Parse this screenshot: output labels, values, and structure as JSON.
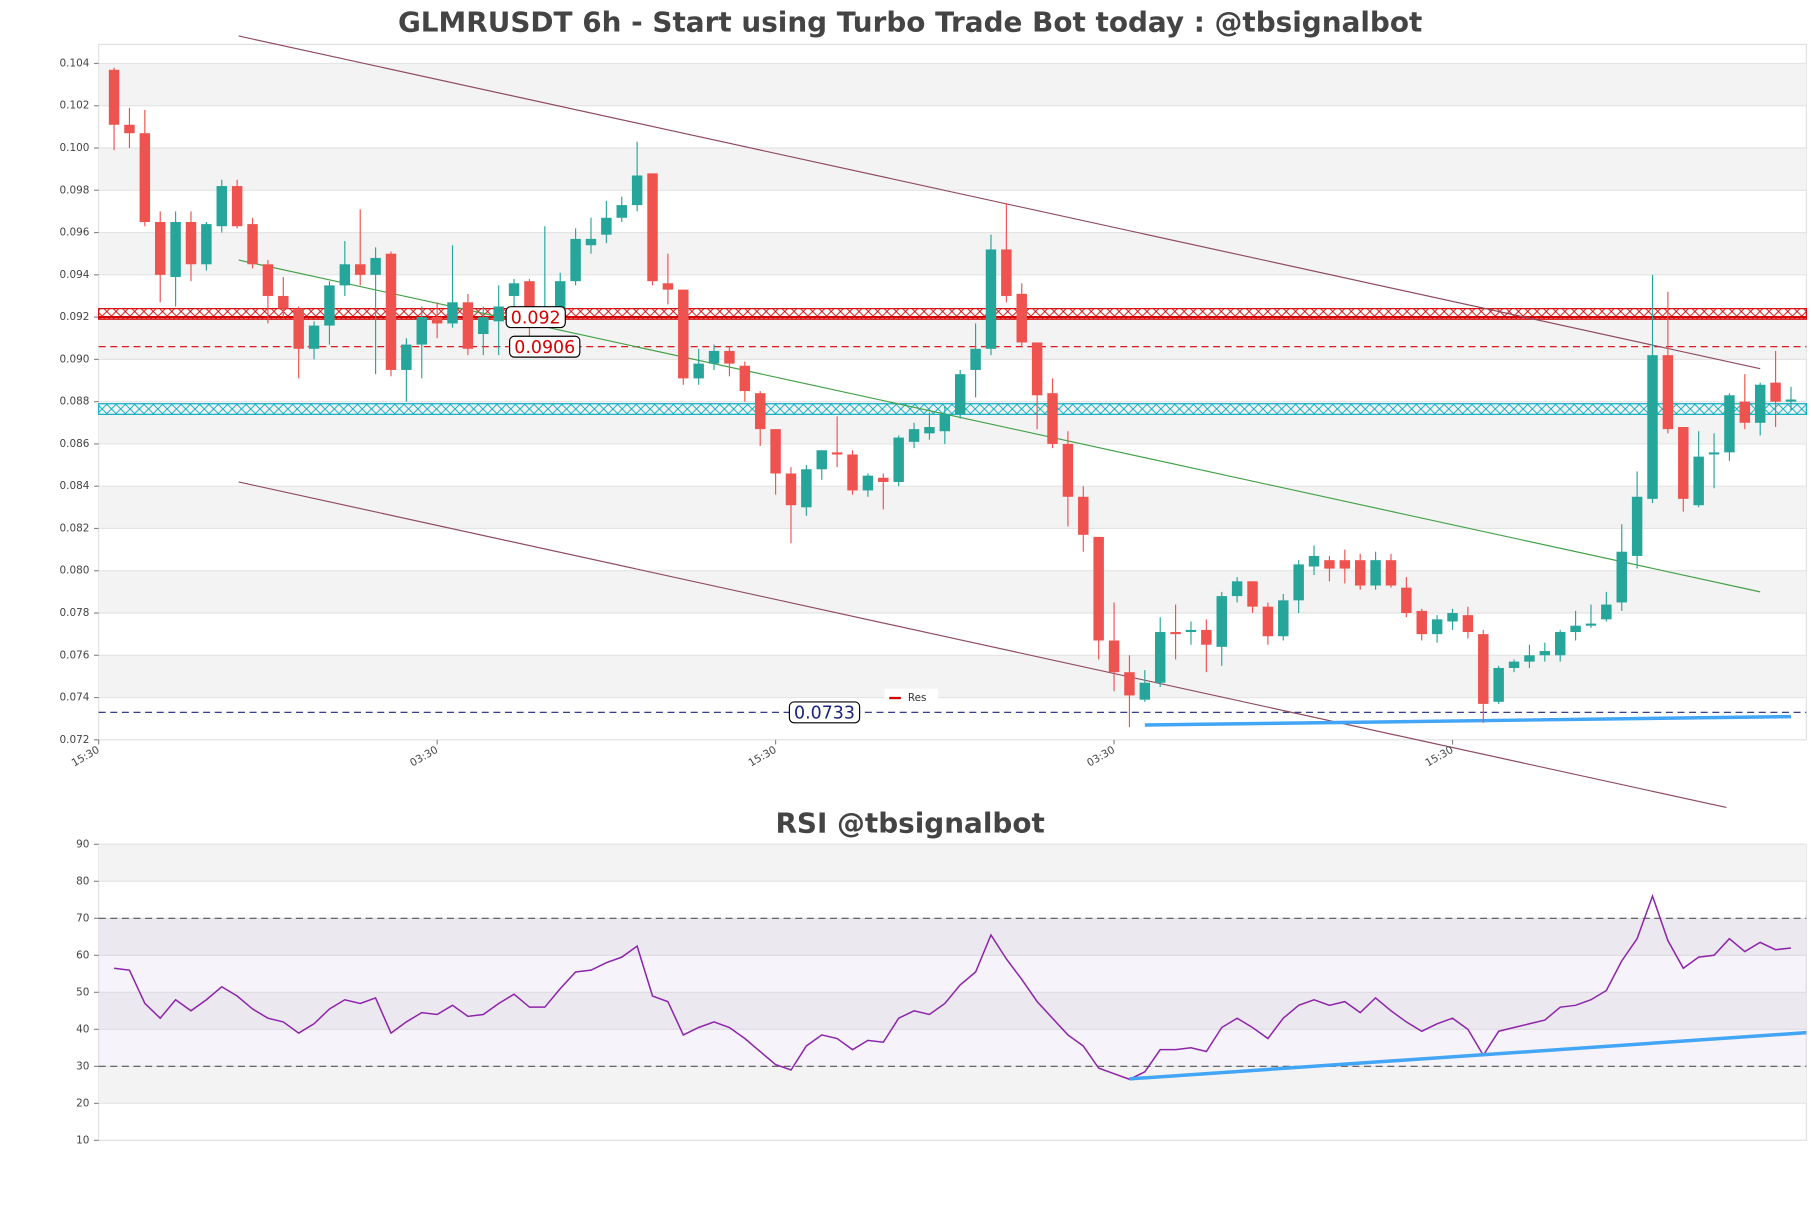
{
  "chart_data": [
    {
      "type": "candlestick",
      "title": "GLMRUSDT 6h - Start using Turbo Trade Bot today : @tbsignalbot",
      "open": [
        0.1037,
        0.1011,
        0.1007,
        0.0965,
        0.0939,
        0.0965,
        0.0945,
        0.0963,
        0.0982,
        0.0964,
        0.0945,
        0.093,
        0.0924,
        0.0905,
        0.0916,
        0.0935,
        0.0945,
        0.094,
        0.095,
        0.0895,
        0.0907,
        0.092,
        0.0917,
        0.0927,
        0.0912,
        0.0918,
        0.093,
        0.0937,
        0.092,
        0.0922,
        0.0937,
        0.0954,
        0.0959,
        0.0967,
        0.0973,
        0.0988,
        0.0936,
        0.0933,
        0.0891,
        0.0898,
        0.0904,
        0.0897,
        0.0884,
        0.0867,
        0.0846,
        0.083,
        0.0848,
        0.0856,
        0.0855,
        0.0838,
        0.0844,
        0.0842,
        0.0861,
        0.0865,
        0.0866,
        0.0874,
        0.0895,
        0.0905,
        0.0952,
        0.0931,
        0.0908,
        0.0884,
        0.086,
        0.0835,
        0.0816,
        0.0767,
        0.0752,
        0.0739,
        0.0747,
        0.0771,
        0.0771,
        0.0772,
        0.0764,
        0.0788,
        0.0795,
        0.0783,
        0.0769,
        0.0786,
        0.0802,
        0.0805,
        0.0805,
        0.0805,
        0.0793,
        0.0805,
        0.0792,
        0.0781,
        0.077,
        0.0776,
        0.0779,
        0.077,
        0.0738,
        0.0754,
        0.0757,
        0.076,
        0.076,
        0.0771,
        0.0774,
        0.0777,
        0.0785,
        0.0807,
        0.0834,
        0.0902,
        0.0868,
        0.0831,
        0.0855,
        0.0856,
        0.088,
        0.087,
        0.0889,
        0.088
      ],
      "high": [
        0.1038,
        0.1019,
        0.1018,
        0.097,
        0.097,
        0.097,
        0.0965,
        0.0985,
        0.0985,
        0.0967,
        0.0947,
        0.0939,
        0.0925,
        0.0918,
        0.0937,
        0.0956,
        0.0971,
        0.0953,
        0.0951,
        0.091,
        0.0925,
        0.0927,
        0.0954,
        0.0931,
        0.0925,
        0.0935,
        0.0938,
        0.0938,
        0.0963,
        0.0941,
        0.0962,
        0.0967,
        0.0975,
        0.0977,
        0.1003,
        0.0988,
        0.095,
        0.0933,
        0.0905,
        0.0907,
        0.0906,
        0.0899,
        0.0885,
        0.0867,
        0.0849,
        0.085,
        0.0857,
        0.0873,
        0.0857,
        0.0846,
        0.0846,
        0.0864,
        0.087,
        0.0875,
        0.0878,
        0.0895,
        0.0917,
        0.0959,
        0.0974,
        0.0936,
        0.0908,
        0.0891,
        0.0866,
        0.084,
        0.0816,
        0.0785,
        0.076,
        0.0753,
        0.0778,
        0.0784,
        0.0776,
        0.0777,
        0.079,
        0.0797,
        0.0795,
        0.0785,
        0.0789,
        0.0805,
        0.0812,
        0.0807,
        0.081,
        0.0808,
        0.0809,
        0.0808,
        0.0797,
        0.0782,
        0.0779,
        0.0782,
        0.0783,
        0.0772,
        0.0755,
        0.0758,
        0.0765,
        0.0766,
        0.0772,
        0.0781,
        0.0784,
        0.079,
        0.0822,
        0.0847,
        0.094,
        0.0932,
        0.0868,
        0.0866,
        0.0865,
        0.0884,
        0.0893,
        0.0889,
        0.0904,
        0.0887
      ],
      "low": [
        0.0999,
        0.1,
        0.0963,
        0.0927,
        0.0925,
        0.0937,
        0.0942,
        0.096,
        0.0962,
        0.0943,
        0.0917,
        0.092,
        0.0891,
        0.09,
        0.0907,
        0.093,
        0.0935,
        0.0893,
        0.0892,
        0.088,
        0.0891,
        0.091,
        0.0915,
        0.0902,
        0.0902,
        0.0902,
        0.092,
        0.091,
        0.0918,
        0.092,
        0.0935,
        0.095,
        0.0955,
        0.0965,
        0.097,
        0.0935,
        0.0926,
        0.0888,
        0.0888,
        0.0895,
        0.0892,
        0.088,
        0.0859,
        0.0836,
        0.0813,
        0.0826,
        0.0843,
        0.0849,
        0.0836,
        0.0835,
        0.0829,
        0.084,
        0.0858,
        0.0862,
        0.086,
        0.0872,
        0.0882,
        0.0902,
        0.0927,
        0.0906,
        0.0867,
        0.0858,
        0.0821,
        0.0809,
        0.0758,
        0.0743,
        0.0726,
        0.0738,
        0.0745,
        0.0758,
        0.0765,
        0.0752,
        0.0755,
        0.0785,
        0.078,
        0.0765,
        0.0767,
        0.078,
        0.0798,
        0.0795,
        0.0794,
        0.0791,
        0.0791,
        0.0792,
        0.0778,
        0.0767,
        0.0766,
        0.0772,
        0.0768,
        0.0728,
        0.0737,
        0.0752,
        0.0754,
        0.0757,
        0.0757,
        0.0767,
        0.0773,
        0.0776,
        0.0781,
        0.0801,
        0.0832,
        0.0865,
        0.0828,
        0.083,
        0.0839,
        0.0852,
        0.0867,
        0.0864,
        0.0868,
        0.0876
      ],
      "close": [
        0.1011,
        0.1007,
        0.0965,
        0.094,
        0.0965,
        0.0945,
        0.0964,
        0.0982,
        0.0963,
        0.0945,
        0.093,
        0.0924,
        0.0905,
        0.0916,
        0.0935,
        0.0945,
        0.094,
        0.0948,
        0.0895,
        0.0907,
        0.092,
        0.0917,
        0.0927,
        0.0905,
        0.092,
        0.0925,
        0.0936,
        0.0925,
        0.0922,
        0.0937,
        0.0957,
        0.0957,
        0.0967,
        0.0973,
        0.0987,
        0.0937,
        0.0933,
        0.0891,
        0.0898,
        0.0904,
        0.0898,
        0.0885,
        0.0867,
        0.0846,
        0.0831,
        0.0848,
        0.0857,
        0.0855,
        0.0838,
        0.0845,
        0.0842,
        0.0863,
        0.0867,
        0.0868,
        0.0874,
        0.0893,
        0.0905,
        0.0952,
        0.093,
        0.0908,
        0.0883,
        0.086,
        0.0835,
        0.0817,
        0.0767,
        0.0752,
        0.0741,
        0.0747,
        0.0771,
        0.077,
        0.0772,
        0.0765,
        0.0788,
        0.0795,
        0.0783,
        0.0769,
        0.0786,
        0.0803,
        0.0807,
        0.0801,
        0.0801,
        0.0793,
        0.0805,
        0.0793,
        0.078,
        0.077,
        0.0777,
        0.078,
        0.0771,
        0.0737,
        0.0754,
        0.0757,
        0.076,
        0.0762,
        0.0771,
        0.0774,
        0.0775,
        0.0784,
        0.0809,
        0.0835,
        0.0902,
        0.0867,
        0.0834,
        0.0854,
        0.0856,
        0.0883,
        0.087,
        0.0888,
        0.088,
        0.0881
      ],
      "up_color": "#26a69a",
      "down_color": "#ef5350",
      "xlim": [
        -1,
        110
      ],
      "xticks": [
        {
          "value": -1,
          "label": "15:30"
        },
        {
          "value": 21,
          "label": "03:30"
        },
        {
          "value": 43,
          "label": "15:30"
        },
        {
          "value": 65,
          "label": "03:30"
        },
        {
          "value": 87,
          "label": "15:30"
        }
      ],
      "ylim": [
        0.072,
        0.1049
      ],
      "yticks": [
        0.072,
        0.074,
        0.076,
        0.078,
        {
          "value": 0.08,
          "label": "0.080"
        },
        0.082,
        0.084,
        0.086,
        0.088,
        {
          "value": 0.09,
          "label": "0.090"
        },
        0.092,
        0.094,
        0.096,
        0.098,
        {
          "value": 0.1,
          "label": "0.100"
        },
        0.102,
        0.104
      ],
      "levels": [
        {
          "value": 0.092,
          "color": "#d50000",
          "style": "solid"
        },
        {
          "value": 0.0906,
          "color": "#d50000",
          "style": "dashed"
        },
        {
          "value": 0.0733,
          "color": "#1a237e",
          "style": "dashed"
        }
      ],
      "zones": [
        {
          "range": [
            0.0919,
            0.0924
          ],
          "color": "#d50000"
        },
        {
          "range": [
            0.0874,
            0.0879
          ],
          "color": "#00acc1"
        }
      ],
      "trendlines": [
        {
          "x": [
            8.1,
            107
          ],
          "y": [
            0.1053,
            0.08956
          ],
          "color": "#8e4b5e",
          "width": 1
        },
        {
          "x": [
            8.1,
            107
          ],
          "y": [
            0.0947,
            0.079
          ],
          "color": "#43a047",
          "width": 1
        },
        {
          "x": [
            8.1,
            104.8
          ],
          "y": [
            0.0842,
            0.0688
          ],
          "color": "#8e4b5e",
          "width": 1
        },
        {
          "x": [
            67,
            109
          ],
          "y": [
            0.0727,
            0.0731
          ],
          "color": "#42a5f5",
          "width": 3
        }
      ],
      "legend": [
        {
          "name": "Res",
          "color": "#d50000"
        }
      ]
    },
    {
      "type": "line",
      "title": "RSI @tbsignalbot",
      "values": [
        56.5,
        56,
        47,
        43,
        48,
        45,
        48,
        51.5,
        49,
        45.5,
        43,
        42,
        39,
        41.5,
        45.5,
        48,
        47,
        48.5,
        39,
        42,
        44.5,
        44,
        46.5,
        43.5,
        44,
        47,
        49.5,
        46,
        46,
        51,
        55.5,
        56,
        58,
        59.5,
        62.5,
        49,
        47.5,
        38.5,
        40.5,
        42,
        40.5,
        37.5,
        34,
        30.5,
        29,
        35.5,
        38.5,
        37.5,
        34.5,
        37,
        36.5,
        43,
        45,
        44,
        47,
        52,
        55.5,
        65.5,
        59,
        53.5,
        47.5,
        43,
        38.5,
        35.5,
        29.5,
        28,
        26.5,
        28.5,
        34.5,
        34.5,
        35,
        34,
        40.5,
        43,
        40.5,
        37.5,
        43,
        46.5,
        48,
        46.5,
        47.5,
        44.5,
        48.5,
        45,
        42,
        39.5,
        41.5,
        43,
        40,
        33,
        39.5,
        40.5,
        41.5,
        42.5,
        46,
        46.5,
        48,
        50.5,
        58.5,
        64.5,
        76,
        64,
        56.5,
        59.5,
        60,
        64.5,
        61,
        63.5,
        61.5,
        62
      ],
      "color": "#8e24aa",
      "xlim": [
        -1,
        110
      ],
      "ylim": [
        10,
        90
      ],
      "yticks": [
        10,
        20,
        30,
        40,
        50,
        60,
        70,
        80,
        90
      ],
      "levels": [
        70,
        30
      ],
      "trendlines": [
        {
          "x": [
            66,
            110
          ],
          "y": [
            26.6,
            39.1
          ],
          "color": "#42a5f5",
          "width": 3
        }
      ]
    }
  ]
}
